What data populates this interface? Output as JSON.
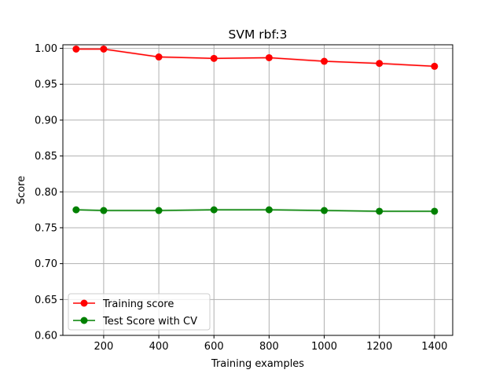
{
  "chart_data": {
    "type": "line",
    "title": "SVM rbf:3",
    "xlabel": "Training examples",
    "ylabel": "Score",
    "xlim": [
      52,
      1466
    ],
    "ylim": [
      0.6,
      1.005
    ],
    "x_ticks": [
      200,
      400,
      600,
      800,
      1000,
      1200,
      1400
    ],
    "y_ticks": [
      0.6,
      0.65,
      0.7,
      0.75,
      0.8,
      0.85,
      0.9,
      0.95,
      1.0
    ],
    "y_tick_labels": [
      "0.60",
      "0.65",
      "0.70",
      "0.75",
      "0.80",
      "0.85",
      "0.90",
      "0.95",
      "1.00"
    ],
    "grid": true,
    "legend_position": "lower-left",
    "x": [
      100,
      200,
      400,
      600,
      800,
      1000,
      1200,
      1400
    ],
    "series": [
      {
        "name": "Training score",
        "color": "#ff0000",
        "values": [
          0.999,
          0.999,
          0.988,
          0.986,
          0.987,
          0.982,
          0.979,
          0.975
        ],
        "band": 0.002
      },
      {
        "name": "Test Score with CV",
        "color": "#008000",
        "values": [
          0.775,
          0.774,
          0.774,
          0.775,
          0.775,
          0.774,
          0.773,
          0.773
        ],
        "band": 0.002
      }
    ]
  }
}
